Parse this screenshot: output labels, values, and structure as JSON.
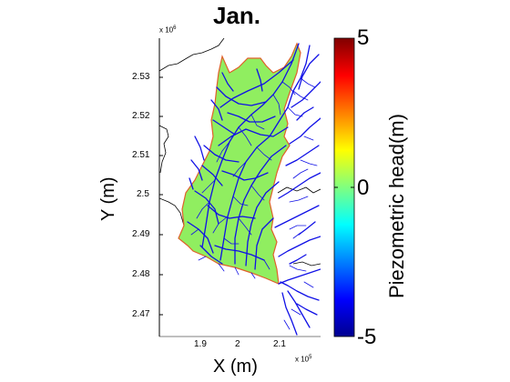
{
  "title": "Jan.",
  "xaxis": {
    "label": "X (m)",
    "ticks": [
      "1.9",
      "2",
      "2.1"
    ],
    "multiplier": "x 10",
    "exponent": "5"
  },
  "yaxis": {
    "label": "Y (m)",
    "ticks": [
      "2.53",
      "2.52",
      "2.51",
      "2.5",
      "2.49",
      "2.48",
      "2.47"
    ],
    "multiplier": "x 10",
    "exponent": "6"
  },
  "colorbar": {
    "label": "Piezometric head(m)",
    "ticks": [
      "5",
      "0",
      "-5"
    ],
    "colormap": "jet"
  },
  "colors": {
    "domain_fill": "#90ee60",
    "boundary": "#e0602a",
    "rivers": "#1010e6",
    "coastline": "#000000"
  }
}
